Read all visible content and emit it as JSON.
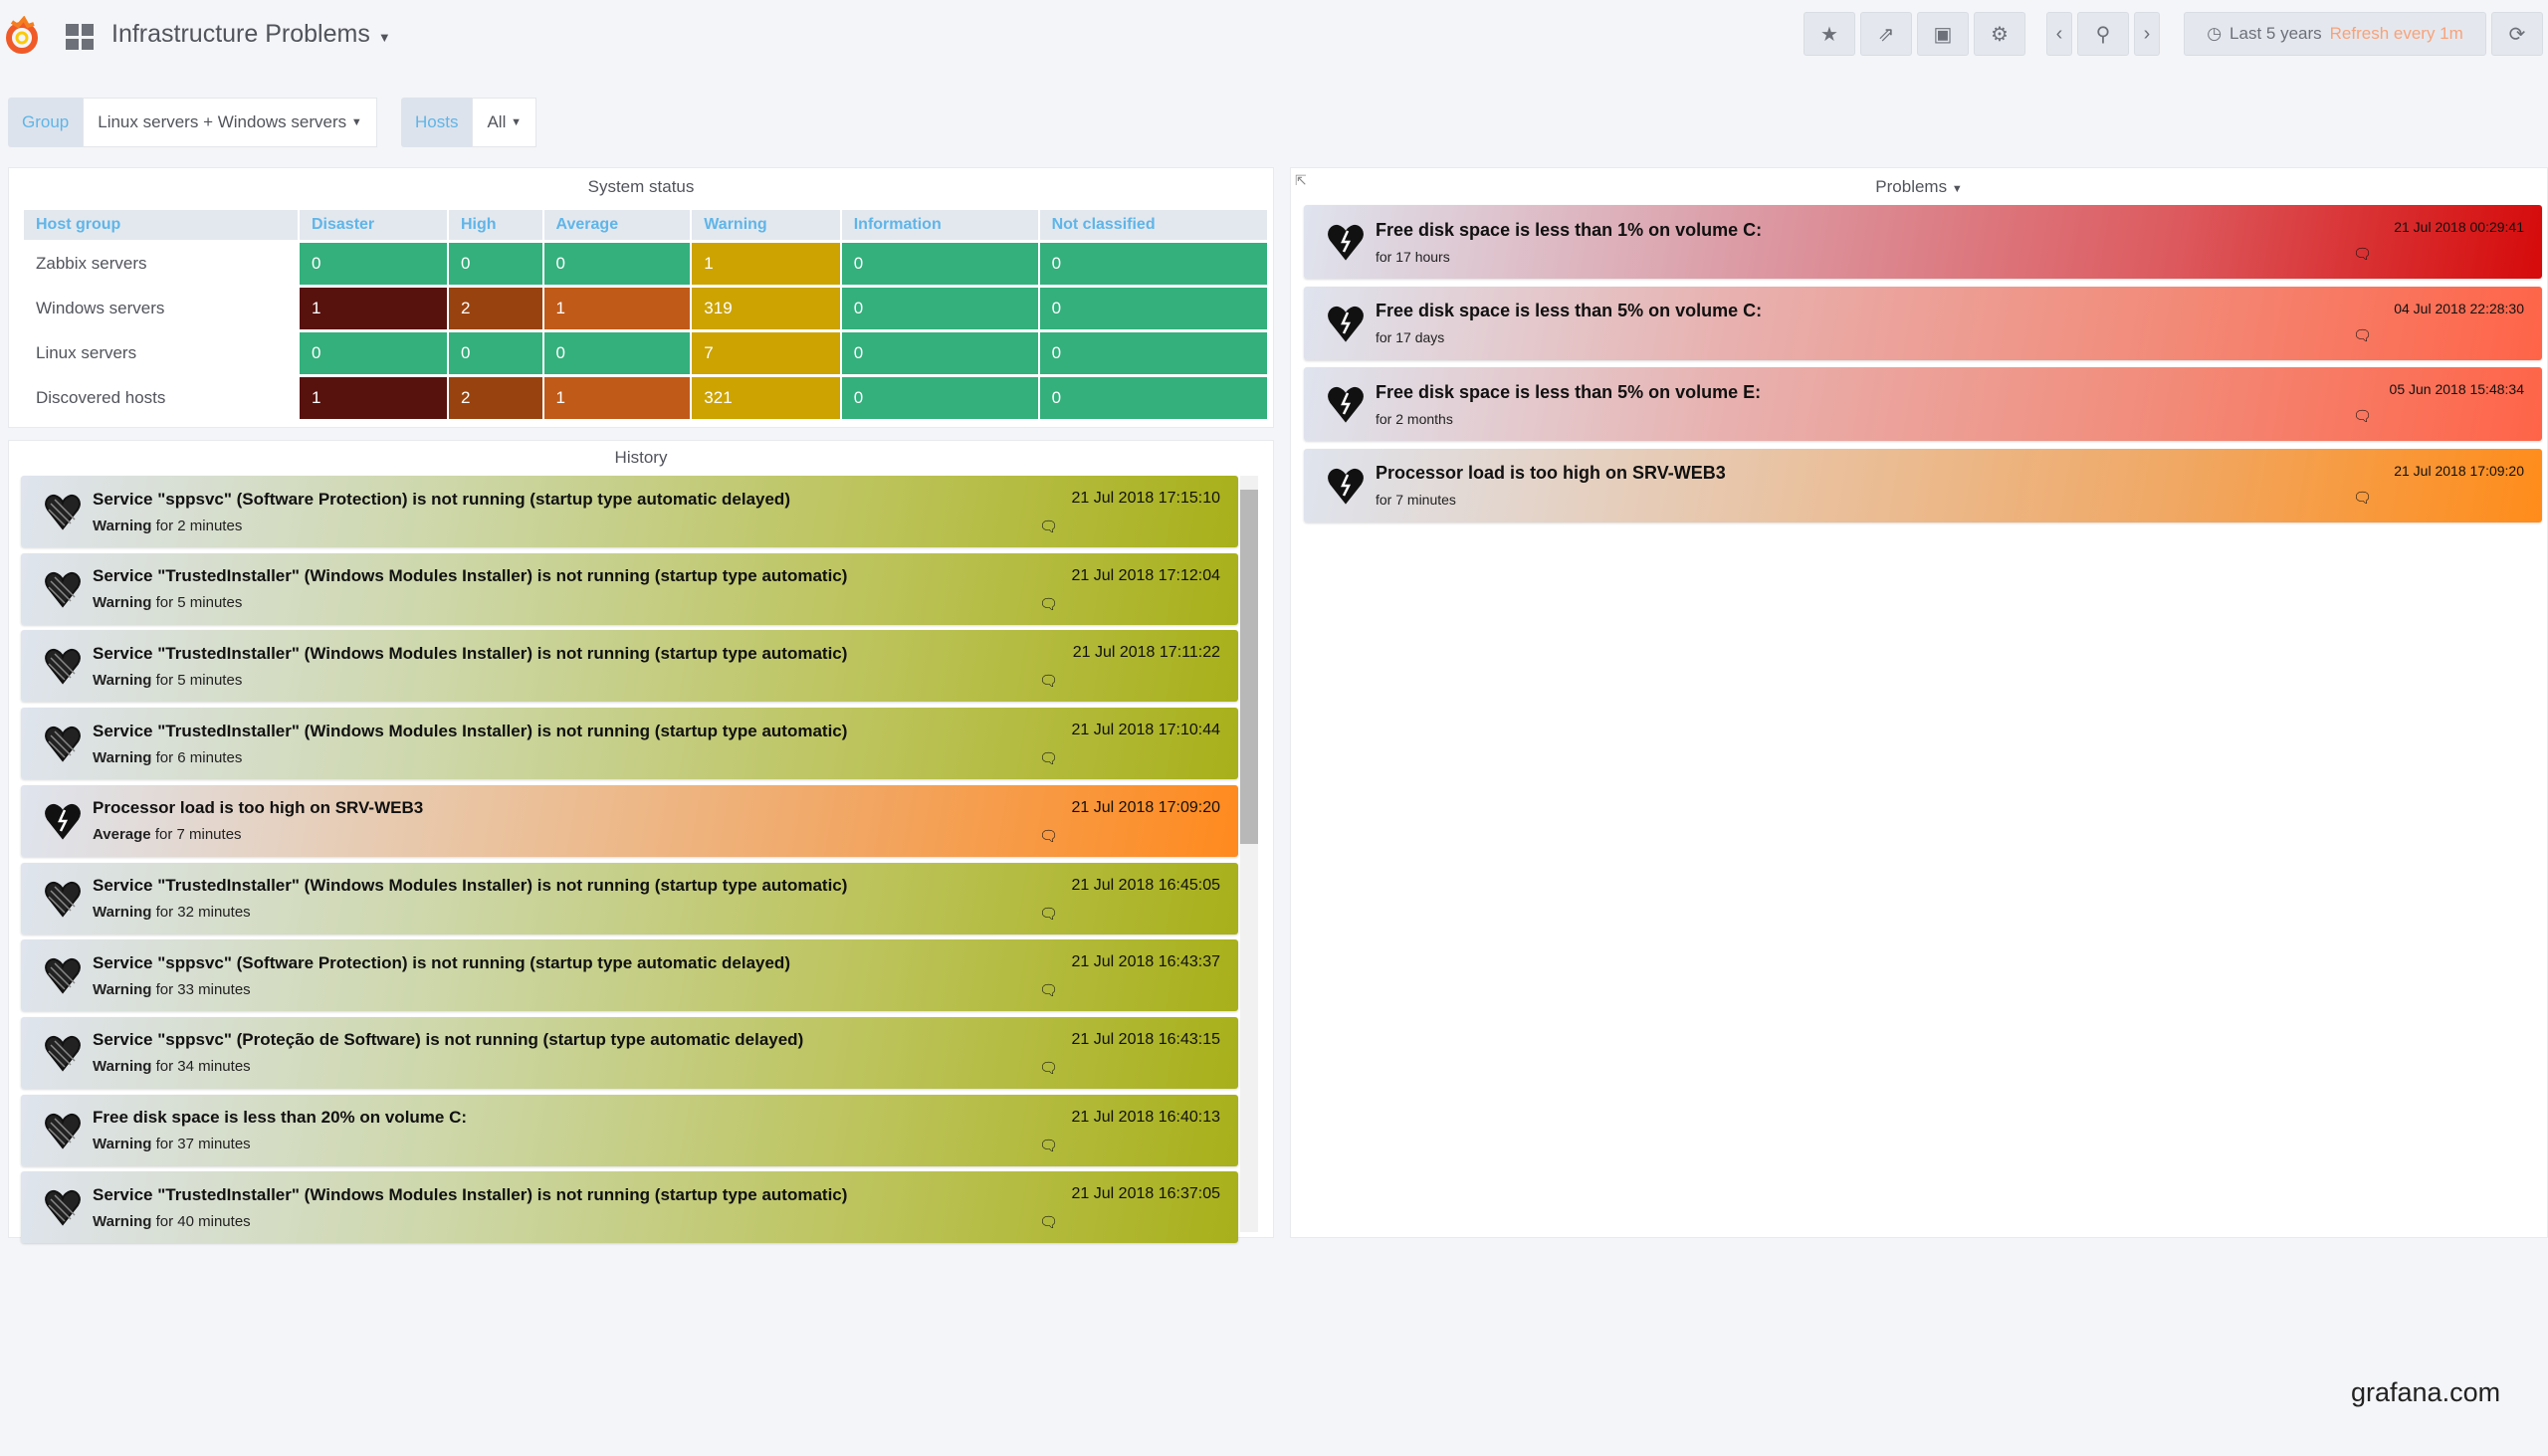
{
  "header": {
    "title": "Infrastructure Problems",
    "buttons": [
      "star-icon",
      "share-icon",
      "save-icon",
      "gear-icon",
      "chevron-left-icon",
      "zoom-out-icon",
      "chevron-right-icon"
    ],
    "time_range": "Last 5 years",
    "refresh": "Refresh every 1m"
  },
  "variables": [
    {
      "label": "Group",
      "value": "Linux servers + Windows servers"
    },
    {
      "label": "Hosts",
      "value": "All"
    }
  ],
  "system_status": {
    "title": "System status",
    "columns": [
      "Host group",
      "Disaster",
      "High",
      "Average",
      "Warning",
      "Information",
      "Not classified"
    ],
    "rows": [
      {
        "group": "Zabbix servers",
        "values": [
          "0",
          "0",
          "0",
          "1",
          "0",
          "0"
        ]
      },
      {
        "group": "Windows servers",
        "values": [
          "1",
          "2",
          "1",
          "319",
          "0",
          "0"
        ]
      },
      {
        "group": "Linux servers",
        "values": [
          "0",
          "0",
          "0",
          "7",
          "0",
          "0"
        ]
      },
      {
        "group": "Discovered hosts",
        "values": [
          "1",
          "2",
          "1",
          "321",
          "0",
          "0"
        ]
      }
    ],
    "colors": {
      "ok": "#33b07c",
      "disaster": "#57120d",
      "high": "#98430f",
      "average": "#c05a18",
      "warning": "#cca300"
    }
  },
  "history": {
    "title": "History",
    "items": [
      {
        "title": "Service \"sppsvc\" (Software Protection) is not running (startup type automatic delayed)",
        "severity": "Warning",
        "duration": "for 2 minutes",
        "time": "21 Jul 2018 17:15:10"
      },
      {
        "title": "Service \"TrustedInstaller\" (Windows Modules Installer) is not running (startup type automatic)",
        "severity": "Warning",
        "duration": "for 5 minutes",
        "time": "21 Jul 2018 17:12:04"
      },
      {
        "title": "Service \"TrustedInstaller\" (Windows Modules Installer) is not running (startup type automatic)",
        "severity": "Warning",
        "duration": "for 5 minutes",
        "time": "21 Jul 2018 17:11:22"
      },
      {
        "title": "Service \"TrustedInstaller\" (Windows Modules Installer) is not running (startup type automatic)",
        "severity": "Warning",
        "duration": "for 6 minutes",
        "time": "21 Jul 2018 17:10:44"
      },
      {
        "title": "Processor load is too high on SRV-WEB3",
        "severity": "Average",
        "duration": "for 7 minutes",
        "time": "21 Jul 2018 17:09:20"
      },
      {
        "title": "Service \"TrustedInstaller\" (Windows Modules Installer) is not running (startup type automatic)",
        "severity": "Warning",
        "duration": "for 32 minutes",
        "time": "21 Jul 2018 16:45:05"
      },
      {
        "title": "Service \"sppsvc\" (Software Protection) is not running (startup type automatic delayed)",
        "severity": "Warning",
        "duration": "for 33 minutes",
        "time": "21 Jul 2018 16:43:37"
      },
      {
        "title": "Service \"sppsvc\" (Proteção de Software) is not running (startup type automatic delayed)",
        "severity": "Warning",
        "duration": "for 34 minutes",
        "time": "21 Jul 2018 16:43:15"
      },
      {
        "title": "Free disk space is less than 20% on volume C:",
        "severity": "Warning",
        "duration": "for 37 minutes",
        "time": "21 Jul 2018 16:40:13"
      },
      {
        "title": "Service \"TrustedInstaller\" (Windows Modules Installer) is not running (startup type automatic)",
        "severity": "Warning",
        "duration": "for 40 minutes",
        "time": "21 Jul 2018 16:37:05"
      }
    ]
  },
  "problems": {
    "title": "Problems",
    "items": [
      {
        "title": "Free disk space is less than 1% on volume C:",
        "duration": "for 17 hours",
        "time": "21 Jul 2018 00:29:41",
        "severity": "disaster"
      },
      {
        "title": "Free disk space is less than 5% on volume C:",
        "duration": "for 17 days",
        "time": "04 Jul 2018 22:28:30",
        "severity": "high"
      },
      {
        "title": "Free disk space is less than 5% on volume E:",
        "duration": "for 2 months",
        "time": "05 Jun 2018 15:48:34",
        "severity": "high"
      },
      {
        "title": "Processor load is too high on SRV-WEB3",
        "duration": "for 7 minutes",
        "time": "21 Jul 2018 17:09:20",
        "severity": "average"
      }
    ]
  },
  "footer": {
    "brand": "grafana.com"
  }
}
